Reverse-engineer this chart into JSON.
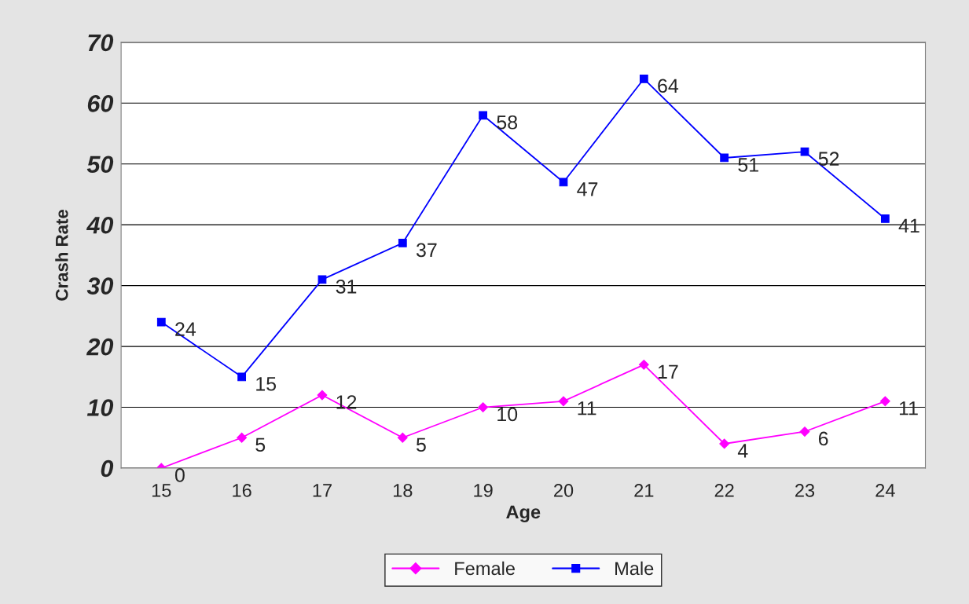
{
  "chart_data": {
    "type": "line",
    "xlabel": "Age",
    "ylabel": "Crash Rate",
    "categories": [
      "15",
      "16",
      "17",
      "18",
      "19",
      "20",
      "21",
      "22",
      "23",
      "24"
    ],
    "series": [
      {
        "name": "Female",
        "color": "#ff00ff",
        "marker": "diamond",
        "values": [
          0,
          5,
          12,
          5,
          10,
          11,
          17,
          4,
          6,
          11
        ]
      },
      {
        "name": "Male",
        "color": "#0000ff",
        "marker": "square",
        "values": [
          24,
          15,
          31,
          37,
          58,
          47,
          64,
          51,
          52,
          41
        ]
      }
    ],
    "ylim": [
      0,
      70
    ],
    "yticks": [
      0,
      10,
      20,
      30,
      40,
      50,
      60,
      70
    ],
    "grid": "y",
    "legend": "bottom",
    "data_labels": true,
    "line_style": "solid"
  }
}
